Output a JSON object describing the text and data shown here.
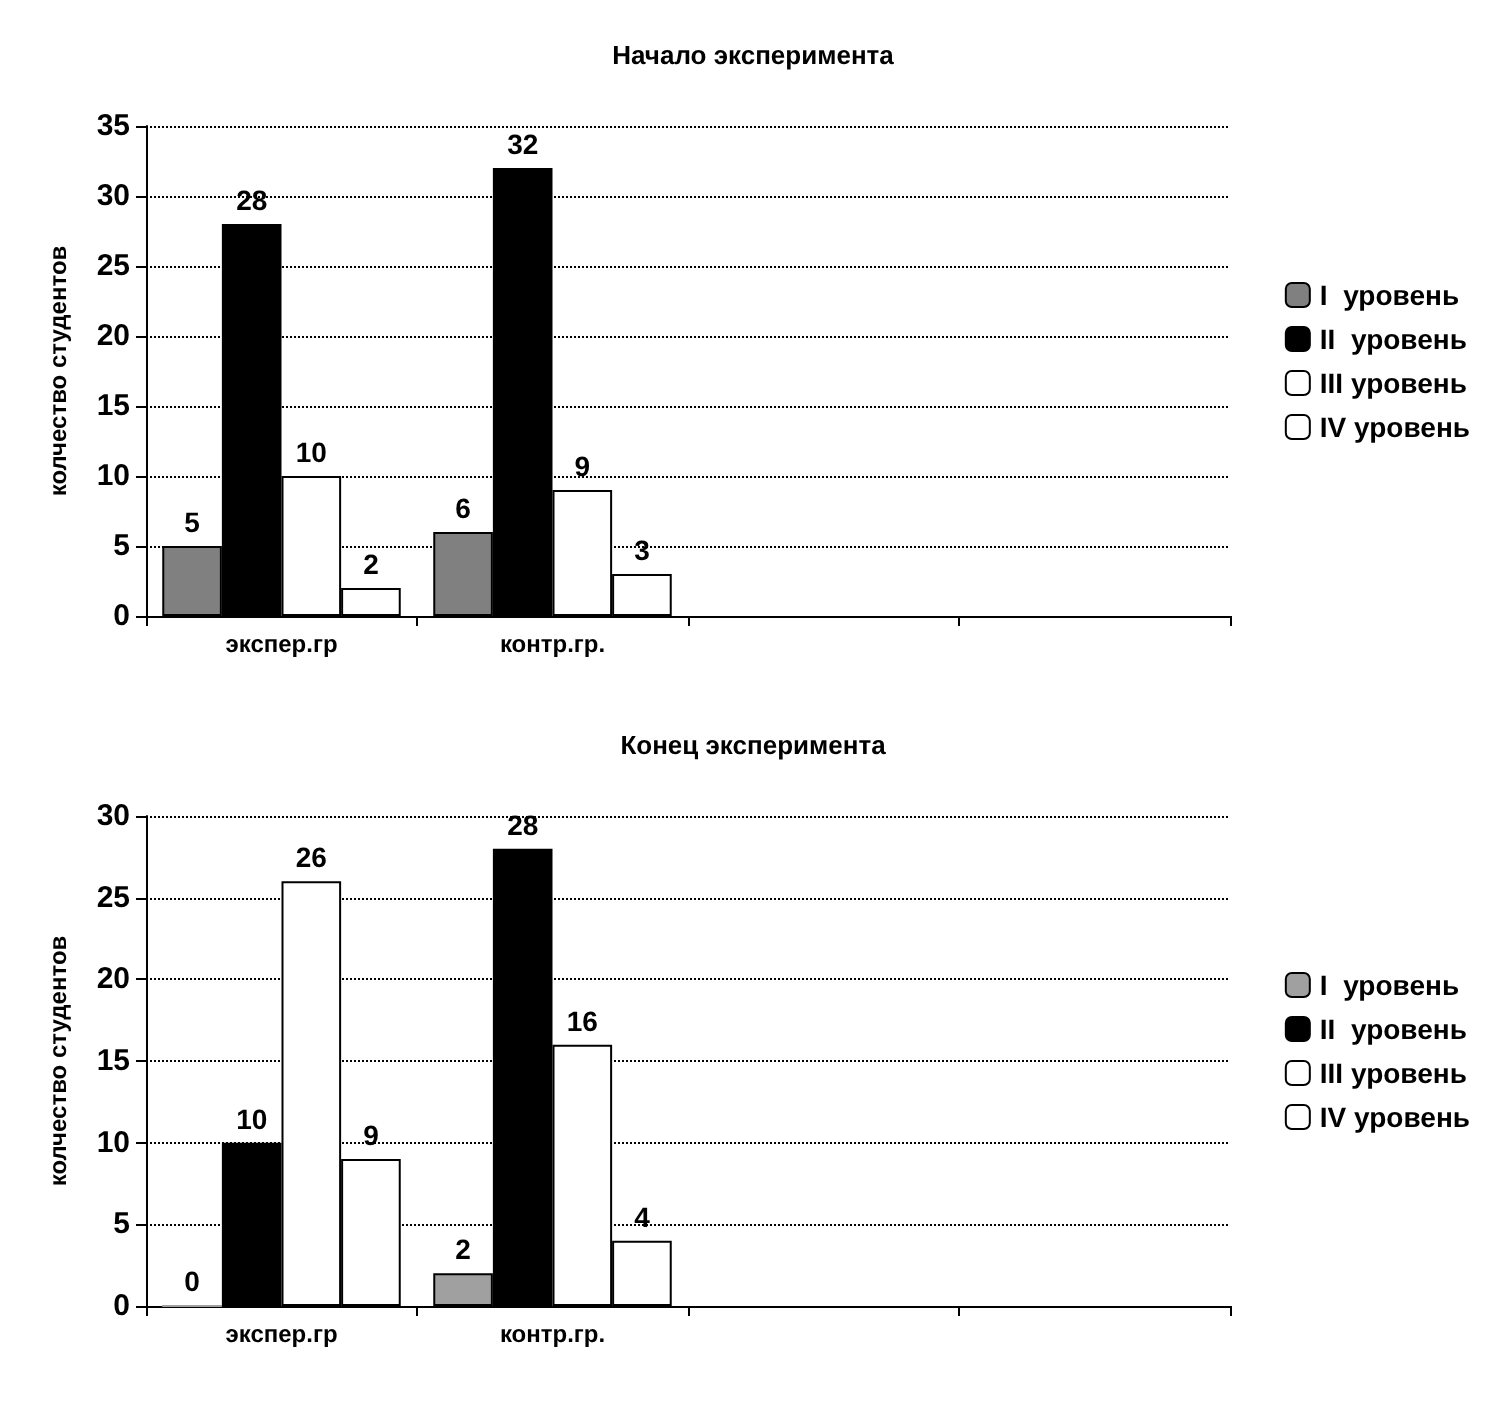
{
  "chart_data": [
    {
      "type": "bar",
      "title": "Начало эксперимента",
      "ylabel": "колчество студентов",
      "categories": [
        "экспер.гр",
        "контр.гр.",
        null,
        null
      ],
      "series": [
        {
          "name": "I  уровень",
          "color": "#808080",
          "values": [
            5,
            6,
            null,
            null
          ]
        },
        {
          "name": "II  уровень",
          "color": "#000000",
          "values": [
            28,
            32,
            null,
            null
          ]
        },
        {
          "name": "III уровень",
          "color": "#ffffff",
          "values": [
            10,
            9,
            null,
            null
          ]
        },
        {
          "name": "IV уровень",
          "color": "#ffffff",
          "values": [
            2,
            3,
            null,
            null
          ]
        }
      ],
      "ylim": [
        0,
        35
      ],
      "yticks": [
        0,
        5,
        10,
        15,
        20,
        25,
        30,
        35
      ],
      "grid": "y",
      "legend": "right",
      "data_labels": true
    },
    {
      "type": "bar",
      "title": "Конец эксперимента",
      "ylabel": "колчество студентов",
      "categories": [
        "экспер.гр",
        "контр.гр.",
        null,
        null
      ],
      "series": [
        {
          "name": "I  уровень",
          "color": "#a0a0a0",
          "values": [
            0,
            2,
            null,
            null
          ]
        },
        {
          "name": "II  уровень",
          "color": "#000000",
          "values": [
            10,
            28,
            null,
            null
          ]
        },
        {
          "name": "III уровень",
          "color": "#ffffff",
          "values": [
            26,
            16,
            null,
            null
          ]
        },
        {
          "name": "IV уровень",
          "color": "#ffffff",
          "values": [
            9,
            4,
            null,
            null
          ]
        }
      ],
      "ylim": [
        0,
        30
      ],
      "yticks": [
        0,
        5,
        10,
        15,
        20,
        25,
        30
      ],
      "grid": "y",
      "legend": "right",
      "data_labels": true
    }
  ]
}
